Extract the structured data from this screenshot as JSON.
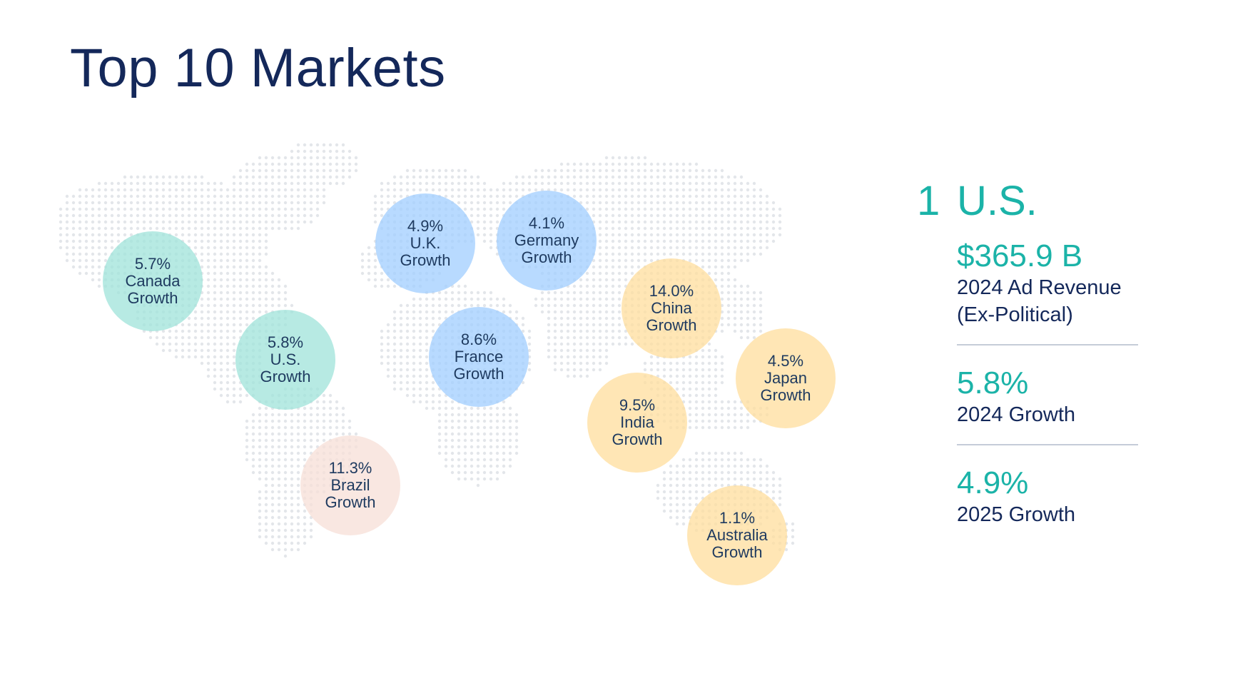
{
  "page": {
    "title": "Top 10 Markets"
  },
  "markets": [
    {
      "key": "canada",
      "value": "5.7%",
      "country": "Canada",
      "label": "Growth",
      "color_group": "teal"
    },
    {
      "key": "us",
      "value": "5.8%",
      "country": "U.S.",
      "label": "Growth",
      "color_group": "teal"
    },
    {
      "key": "uk",
      "value": "4.9%",
      "country": "U.K.",
      "label": "Growth",
      "color_group": "blue"
    },
    {
      "key": "germany",
      "value": "4.1%",
      "country": "Germany",
      "label": "Growth",
      "color_group": "blue"
    },
    {
      "key": "france",
      "value": "8.6%",
      "country": "France",
      "label": "Growth",
      "color_group": "blue"
    },
    {
      "key": "china",
      "value": "14.0%",
      "country": "China",
      "label": "Growth",
      "color_group": "yellow"
    },
    {
      "key": "japan",
      "value": "4.5%",
      "country": "Japan",
      "label": "Growth",
      "color_group": "yellow"
    },
    {
      "key": "india",
      "value": "9.5%",
      "country": "India",
      "label": "Growth",
      "color_group": "yellow"
    },
    {
      "key": "brazil",
      "value": "11.3%",
      "country": "Brazil",
      "label": "Growth",
      "color_group": "pink"
    },
    {
      "key": "australia",
      "value": "1.1%",
      "country": "Australia",
      "label": "Growth",
      "color_group": "yellow"
    }
  ],
  "colors": {
    "teal": "#9fe3d9",
    "blue": "#a0ceff",
    "yellow": "#ffde9c",
    "pink": "#f7dfd7",
    "accent": "#1bb3a8",
    "title": "#14285a"
  },
  "highlight": {
    "rank": "1",
    "country": "U.S.",
    "stats": [
      {
        "value": "$365.9 B",
        "label_line1": "2024 Ad Revenue",
        "label_line2": "(Ex-Political)"
      },
      {
        "value": "5.8%",
        "label_line1": "2024 Growth"
      },
      {
        "value": "4.9%",
        "label_line1": "2025 Growth"
      }
    ]
  }
}
